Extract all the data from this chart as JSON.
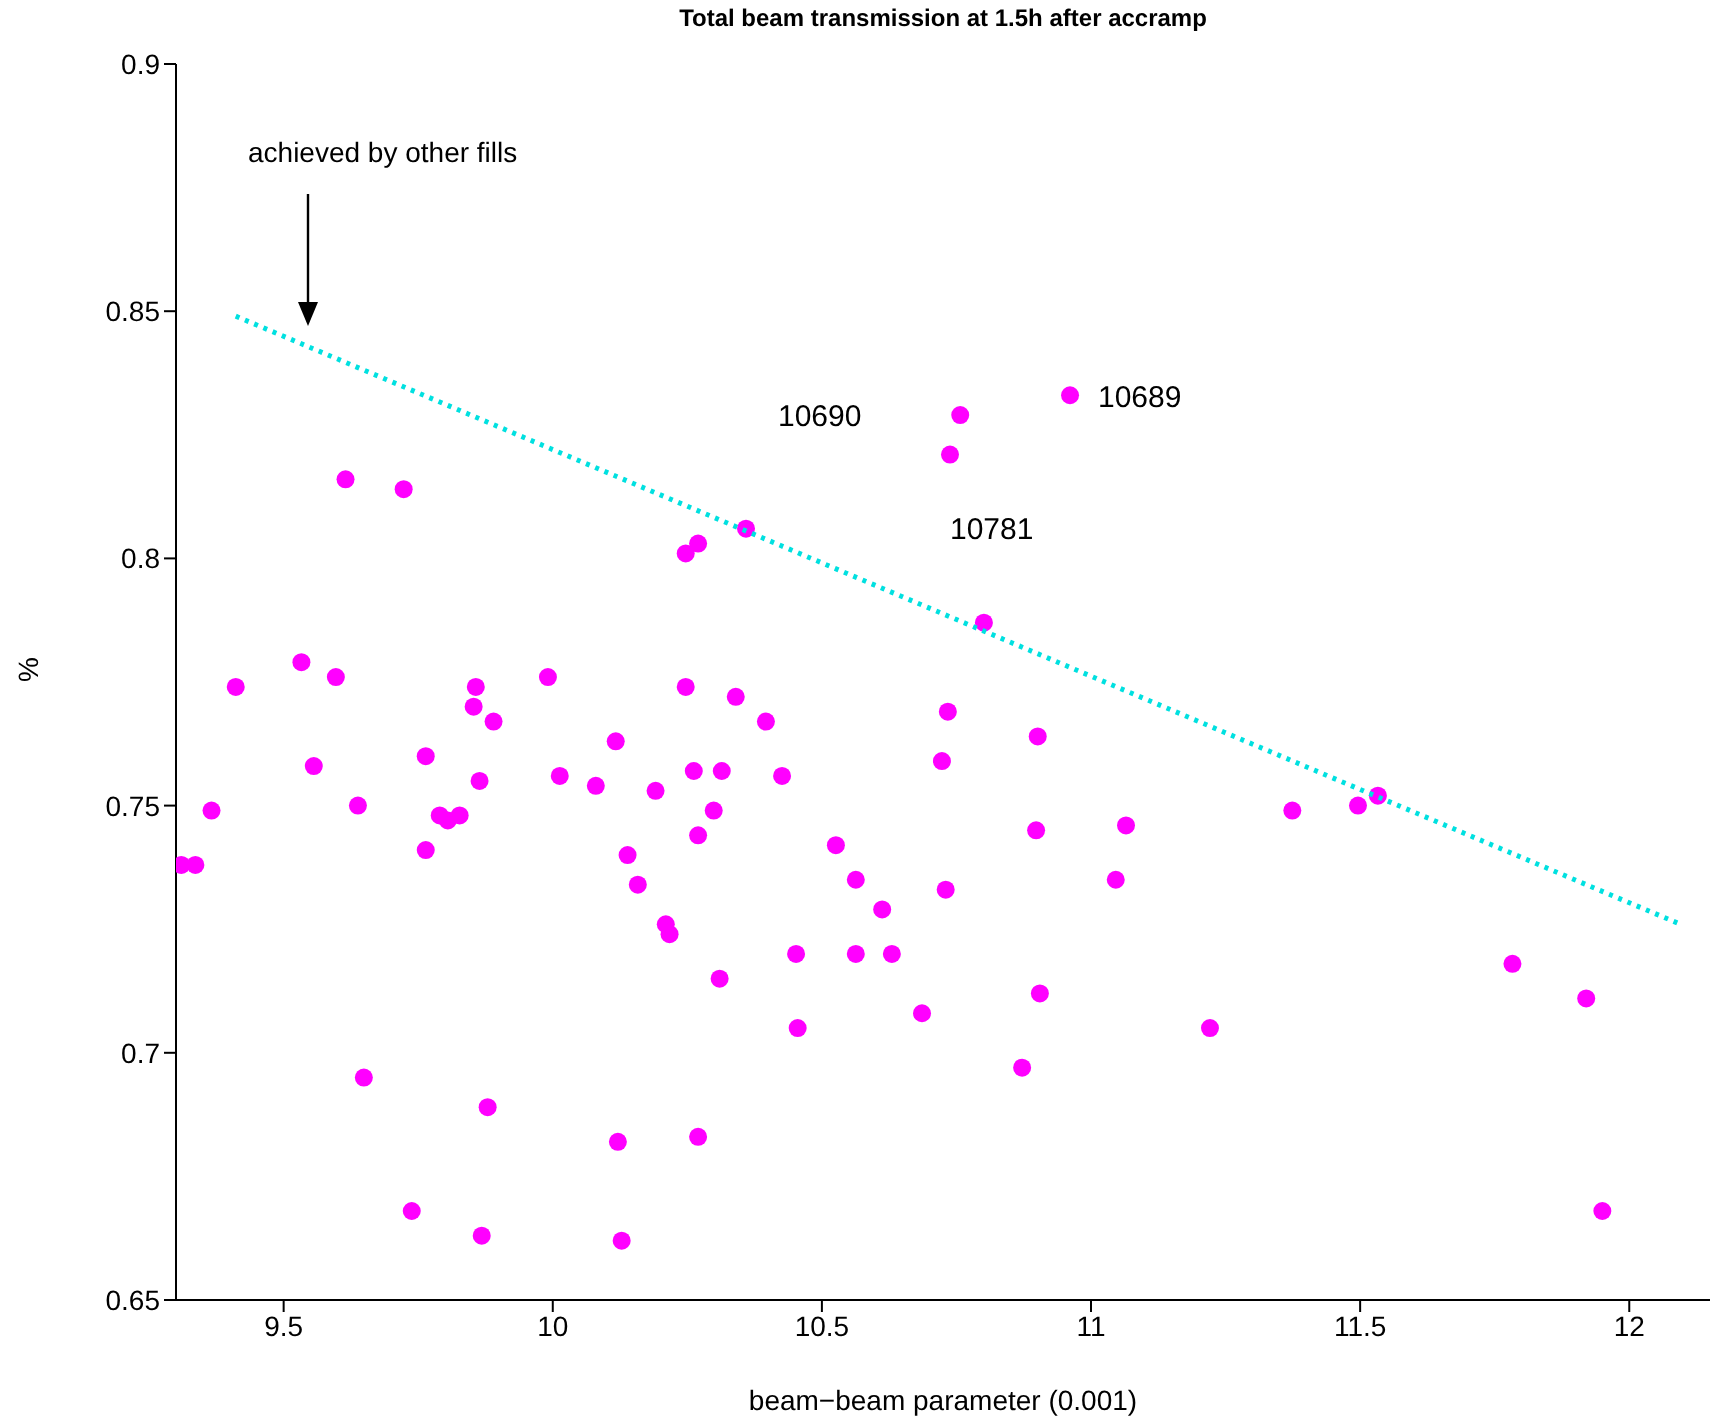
{
  "chart_data": {
    "type": "scatter",
    "title": "Total beam transmission at 1.5h after accramp",
    "xlabel": "beam−beam parameter (0.001)",
    "ylabel": "%",
    "xlim": [
      9.3,
      12.15
    ],
    "ylim": [
      0.65,
      0.9
    ],
    "xticks": [
      9.5,
      10,
      10.5,
      11,
      11.5,
      12
    ],
    "yticks": [
      0.65,
      0.7,
      0.75,
      0.8,
      0.85,
      0.9
    ],
    "series": [
      {
        "color": "#ff00ff",
        "marker": "circle",
        "x": [
          9.31,
          9.336,
          9.366,
          9.411,
          9.533,
          9.597,
          9.556,
          9.638,
          9.615,
          9.723,
          9.649,
          9.738,
          9.764,
          9.764,
          9.79,
          9.805,
          9.827,
          9.857,
          9.853,
          9.89,
          9.864,
          9.868,
          9.879,
          9.991,
          10.013,
          10.08,
          10.117,
          10.121,
          10.128,
          10.139,
          10.158,
          10.191,
          10.21,
          10.217,
          10.247,
          10.27,
          10.247,
          10.262,
          10.314,
          10.299,
          10.27,
          10.27,
          10.31,
          10.359,
          10.34,
          10.396,
          10.426,
          10.526,
          10.563,
          10.612,
          10.452,
          10.563,
          10.63,
          10.455,
          10.686,
          10.723,
          10.734,
          10.73,
          10.738,
          10.757,
          10.801,
          10.872,
          10.898,
          10.901,
          10.905,
          10.961,
          11.046,
          11.065,
          11.221,
          11.374,
          11.496,
          11.533,
          11.783,
          11.92,
          11.95
        ],
        "values": [
          0.738,
          0.738,
          0.749,
          0.774,
          0.779,
          0.776,
          0.758,
          0.75,
          0.816,
          0.814,
          0.695,
          0.668,
          0.76,
          0.741,
          0.748,
          0.747,
          0.748,
          0.774,
          0.77,
          0.767,
          0.755,
          0.663,
          0.689,
          0.776,
          0.756,
          0.754,
          0.763,
          0.682,
          0.662,
          0.74,
          0.734,
          0.753,
          0.726,
          0.724,
          0.801,
          0.803,
          0.774,
          0.757,
          0.757,
          0.749,
          0.744,
          0.683,
          0.715,
          0.806,
          0.772,
          0.767,
          0.756,
          0.742,
          0.735,
          0.729,
          0.72,
          0.72,
          0.72,
          0.705,
          0.708,
          0.759,
          0.769,
          0.733,
          0.821,
          0.829,
          0.787,
          0.697,
          0.745,
          0.764,
          0.712,
          0.833,
          0.735,
          0.746,
          0.705,
          0.749,
          0.75,
          0.752,
          0.718,
          0.711,
          0.668
        ]
      },
      {
        "type": "line",
        "color": "#00e0e0",
        "marker": "none",
        "line_style": "dotted",
        "x": [
          9.411,
          12.095
        ],
        "values": [
          0.849,
          0.726
        ]
      }
    ],
    "annotations": [
      "achieved by other fills",
      "10690",
      {
        "text": "10689",
        "x": 10.961,
        "y": 0.833
      },
      {
        "text": "10781",
        "x": 10.738,
        "y": 0.821
      }
    ]
  }
}
